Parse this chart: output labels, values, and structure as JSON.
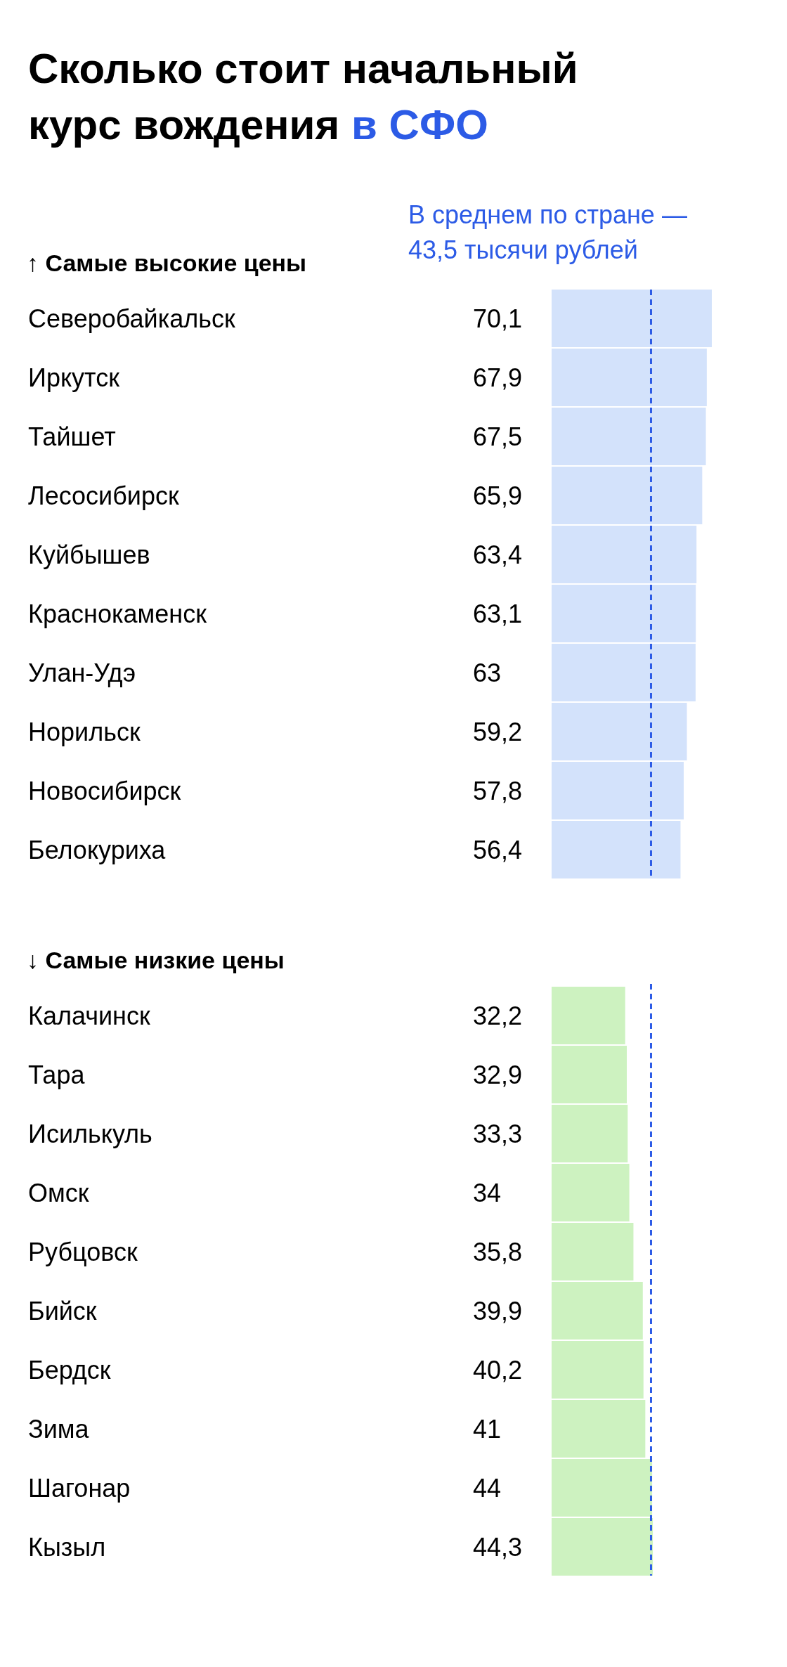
{
  "chart_data": [
    {
      "type": "bar",
      "orientation": "horizontal",
      "title": "Сколько стоит начальный курс вождения в СФО",
      "annotations": [
        "↑ Самые высокие цены"
      ],
      "categories": [
        "Северобайкальск",
        "Иркутск",
        "Тайшет",
        "Лесосибирск",
        "Куйбышев",
        "Краснокаменск",
        "Улан-Удэ",
        "Норильск",
        "Новосибирск",
        "Белокуриха"
      ],
      "values": [
        70.1,
        67.9,
        67.5,
        65.9,
        63.4,
        63.1,
        63,
        59.2,
        57.8,
        56.4
      ],
      "value_labels": [
        "70,1",
        "67,9",
        "67,5",
        "65,9",
        "63,4",
        "63,1",
        "63",
        "59,2",
        "57,8",
        "56,4"
      ],
      "color": "#d3e2fb",
      "ref_lines": [
        {
          "axis": "x",
          "value": 43.5,
          "label": "В среднем по стране — 43,5 тысячи рублей",
          "color": "#2c5be6",
          "line_style": "dashed"
        }
      ]
    },
    {
      "type": "bar",
      "orientation": "horizontal",
      "annotations": [
        "↓ Самые низкие цены"
      ],
      "categories": [
        "Калачинск",
        "Тара",
        "Исилькуль",
        "Омск",
        "Рубцовск",
        "Бийск",
        "Бердск",
        "Зима",
        "Шагонар",
        "Кызыл"
      ],
      "values": [
        32.2,
        32.9,
        33.3,
        34,
        35.8,
        39.9,
        40.2,
        41,
        44,
        44.3
      ],
      "value_labels": [
        "32,2",
        "32,9",
        "33,3",
        "34",
        "35,8",
        "39,9",
        "40,2",
        "41",
        "44",
        "44,3"
      ],
      "color": "#cdf2c0",
      "ref_lines": [
        {
          "axis": "x",
          "value": 43.5,
          "color": "#2c5be6",
          "line_style": "dashed"
        }
      ]
    }
  ]
}
